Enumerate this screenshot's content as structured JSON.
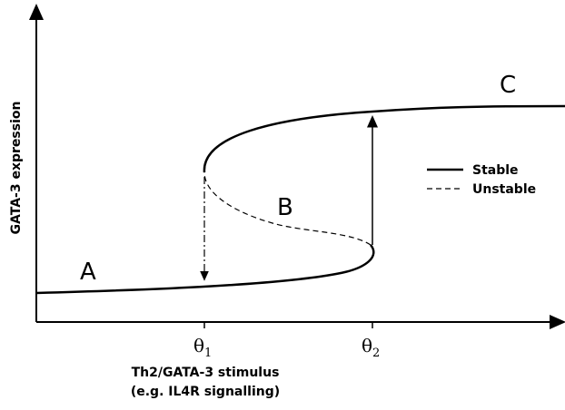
{
  "y_axis_label": "GATA-3 expression",
  "x_axis_label": {
    "line1": "Th2/GATA-3 stimulus",
    "line2": "(e.g. IL4R signalling)"
  },
  "thresholds": [
    {
      "symbol": "θ",
      "subscript": "1"
    },
    {
      "symbol": "θ",
      "subscript": "2"
    }
  ],
  "branches": [
    "A",
    "B",
    "C"
  ],
  "legend": [
    "Stable",
    "Unstable"
  ]
}
